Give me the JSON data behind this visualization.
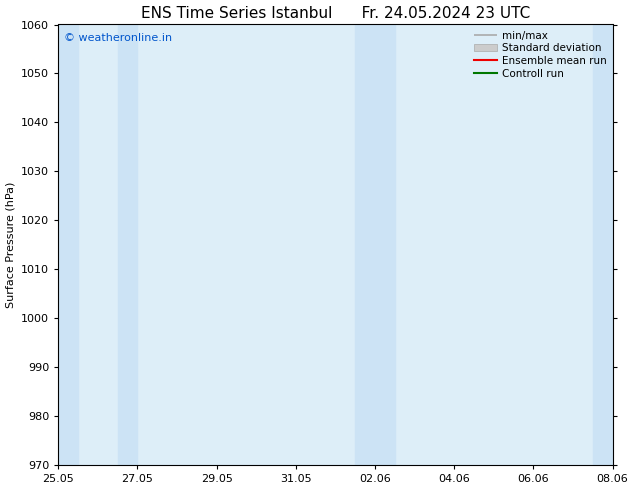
{
  "title_left": "ENS Time Series Istanbul",
  "title_right": "Fr. 24.05.2024 23 UTC",
  "ylabel": "Surface Pressure (hPa)",
  "ylim": [
    970,
    1060
  ],
  "yticks": [
    970,
    980,
    990,
    1000,
    1010,
    1020,
    1030,
    1040,
    1050,
    1060
  ],
  "xlim_start": 0,
  "xlim_end": 14,
  "xtick_labels": [
    "25.05",
    "27.05",
    "29.05",
    "31.05",
    "02.06",
    "04.06",
    "06.06",
    "08.06"
  ],
  "xtick_positions": [
    0,
    2,
    4,
    6,
    8,
    10,
    12,
    14
  ],
  "bg_color": "#ffffff",
  "plot_bg_color": "#ddeef8",
  "shaded_bands": [
    {
      "x_start": 0.0,
      "x_end": 0.5,
      "color": "#cce3f5"
    },
    {
      "x_start": 1.5,
      "x_end": 2.0,
      "color": "#cce3f5"
    },
    {
      "x_start": 7.5,
      "x_end": 8.5,
      "color": "#cce3f5"
    },
    {
      "x_start": 13.5,
      "x_end": 14.0,
      "color": "#cce3f5"
    }
  ],
  "copyright_text": "© weatheronline.in",
  "copyright_color": "#0055cc",
  "copyright_fontsize": 8,
  "title_fontsize": 11,
  "tick_fontsize": 8,
  "label_fontsize": 8,
  "legend_fontsize": 7.5
}
